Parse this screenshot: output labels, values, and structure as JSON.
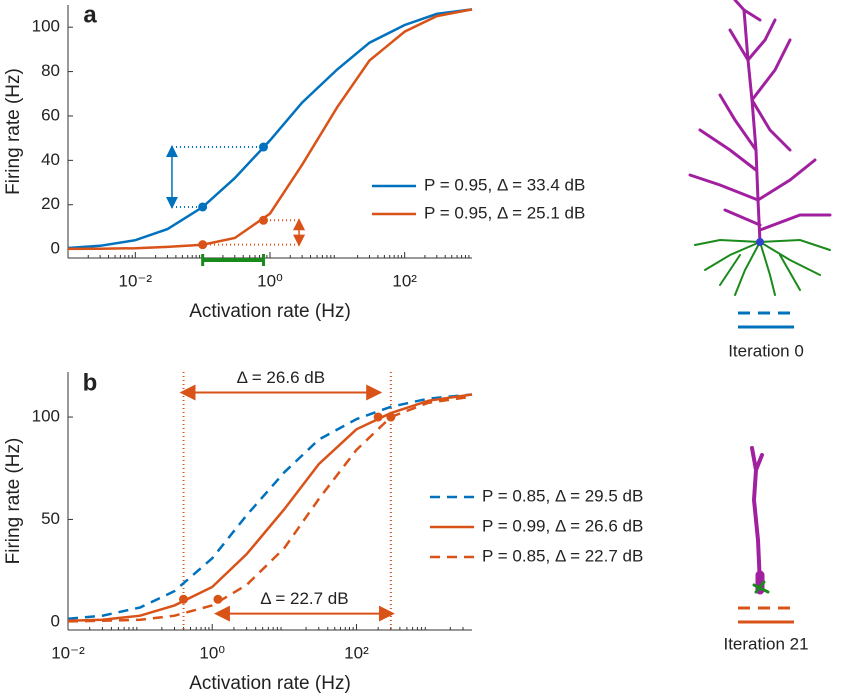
{
  "chart_data": [
    {
      "type": "line",
      "panel_label": "a",
      "x_label": "Activation rate (Hz)",
      "y_label": "Firing rate (Hz)",
      "log_x": true,
      "xlim": [
        0.001,
        1000
      ],
      "ylim": [
        -4,
        110
      ],
      "xticks": [
        {
          "value": 0.01,
          "label": "10⁻²"
        },
        {
          "value": 1,
          "label": "10⁰"
        },
        {
          "value": 100,
          "label": "10²"
        }
      ],
      "yticks": [
        0,
        20,
        40,
        60,
        80,
        100
      ],
      "x": [
        0.001,
        0.003,
        0.01,
        0.03,
        0.1,
        0.3,
        1,
        3,
        10,
        30,
        100,
        300,
        1000
      ],
      "series": [
        {
          "name": "P = 0.95, Δ = 33.4 dB",
          "color": "#0072bd",
          "dashed": false,
          "values": [
            0.5,
            1.5,
            4,
            9,
            19,
            32,
            49,
            66,
            81,
            93,
            101,
            106,
            108
          ],
          "points": {
            "x": [
              0.1,
              0.8
            ],
            "y": [
              19,
              46
            ]
          }
        },
        {
          "name": "P = 0.95, Δ = 25.1 dB",
          "color": "#d95319",
          "dashed": false,
          "values": [
            0.1,
            0.2,
            0.4,
            1,
            2,
            5,
            16,
            38,
            64,
            85,
            98,
            105,
            108
          ],
          "points": {
            "x": [
              0.1,
              0.8
            ],
            "y": [
              2,
              13
            ]
          }
        }
      ],
      "arrows": [
        {
          "x": 0.035,
          "y": [
            19,
            46
          ],
          "x_to": [
            0.1,
            0.8
          ],
          "color": "#0072bd"
        },
        {
          "x": 2.7,
          "y": [
            2,
            13
          ],
          "x_to": [
            0.1,
            0.8
          ],
          "color": "#d95319"
        }
      ],
      "xrange": {
        "x": [
          0.1,
          0.8
        ],
        "color": "#1a8a1a"
      },
      "inset_label": "Iteration 0"
    },
    {
      "type": "line",
      "panel_label": "b",
      "x_label": "Activation rate (Hz)",
      "y_label": "Firing rate (Hz)",
      "log_x": true,
      "xlim": [
        0.01,
        4000
      ],
      "ylim": [
        -4,
        122
      ],
      "xticks": [
        {
          "value": 0.01,
          "label": "10⁻²"
        },
        {
          "value": 1,
          "label": "10⁰"
        },
        {
          "value": 100,
          "label": "10²"
        }
      ],
      "yticks": [
        0,
        50,
        100
      ],
      "x": [
        0.01,
        0.03,
        0.1,
        0.3,
        1,
        3,
        10,
        30,
        100,
        300,
        1000,
        4000
      ],
      "series": [
        {
          "name": "P = 0.85, Δ = 29.5 dB",
          "color": "#0072bd",
          "dashed": true,
          "values": [
            1.5,
            3,
            7,
            15,
            31,
            52,
            73,
            89,
            99,
            105,
            109,
            111
          ]
        },
        {
          "name": "P = 0.99, Δ = 26.6 dB",
          "color": "#d95319",
          "dashed": false,
          "values": [
            0.5,
            1,
            3,
            8,
            17,
            33,
            55,
            77,
            94,
            102,
            108,
            111
          ],
          "points": {
            "x": [
              0.4,
              200
            ],
            "y": [
              11,
              100
            ]
          }
        },
        {
          "name": "P = 0.85, Δ = 22.7 dB",
          "color": "#d95319",
          "dashed": true,
          "values": [
            0.2,
            0.5,
            1,
            3,
            8,
            18,
            36,
            60,
            84,
            100,
            107,
            110
          ],
          "points": {
            "x": [
              1.2,
              300
            ],
            "y": [
              11,
              100
            ]
          }
        }
      ],
      "spans": [
        {
          "text": "Δ = 26.6 dB",
          "x": [
            0.4,
            200
          ],
          "y": 112,
          "color": "#d95319"
        },
        {
          "text": "Δ = 22.7 dB",
          "x": [
            1.2,
            300
          ],
          "y": 4,
          "color": "#d95319"
        }
      ],
      "vlines": {
        "x": [
          0.4,
          300
        ],
        "color": "#d95319"
      },
      "inset_label": "Iteration 21"
    }
  ]
}
